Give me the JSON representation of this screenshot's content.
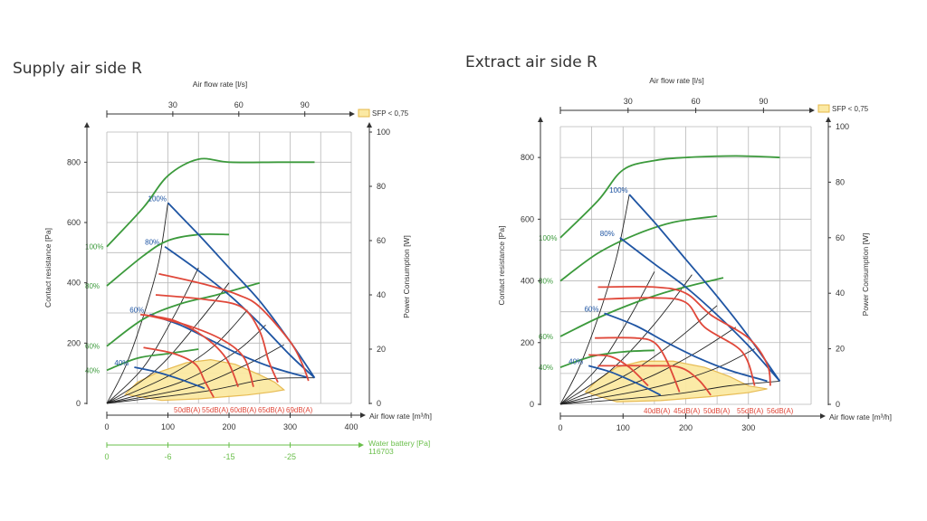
{
  "colors": {
    "grid": "#b8b8b8",
    "axis": "#333333",
    "fan": "#1f55a3",
    "power": "#3c9a3c",
    "noise": "#e0483a",
    "water": "#6abf4b",
    "sfp_fill": "#fbe9a3",
    "sfp_stroke": "#e6b84a",
    "system": "#222222"
  },
  "chart_data": [
    {
      "type": "line",
      "title": "Supply air side R",
      "xlabel": "Air flow rate [m³/h]",
      "ylabel": "Contact resistance [Pa]",
      "y2label": "Power Consumption [W]",
      "top_axis_label": "Air flow rate [l/s]",
      "xlim": [
        0,
        400
      ],
      "ylim": [
        0,
        900
      ],
      "y2lim": [
        0,
        100
      ],
      "x_ticks": [
        "0",
        "100",
        "200",
        "300",
        "400"
      ],
      "y_ticks": [
        "0",
        "200",
        "400",
        "600",
        "800"
      ],
      "y2_ticks": [
        "0",
        "20",
        "40",
        "60",
        "80",
        "100"
      ],
      "top_ticks": [
        "30",
        "60",
        "90"
      ],
      "sfp_label": "SFP < 0,75",
      "water": {
        "label": "Water battery [Pa]",
        "code": "116703",
        "ticks": [
          "0",
          "-6",
          "-15",
          "-25"
        ]
      },
      "fan_curves": [
        {
          "label": "100%",
          "points": [
            [
              100,
              665
            ],
            [
              150,
              560
            ],
            [
              200,
              450
            ],
            [
              250,
              340
            ],
            [
              300,
              205
            ],
            [
              340,
              85
            ]
          ]
        },
        {
          "label": "80%",
          "points": [
            [
              95,
              520
            ],
            [
              150,
              440
            ],
            [
              200,
              360
            ],
            [
              250,
              265
            ],
            [
              300,
              160
            ],
            [
              340,
              85
            ]
          ]
        },
        {
          "label": "60%",
          "points": [
            [
              70,
              295
            ],
            [
              120,
              260
            ],
            [
              170,
              210
            ],
            [
              220,
              160
            ],
            [
              270,
              120
            ],
            [
              330,
              85
            ]
          ]
        },
        {
          "label": "40%",
          "points": [
            [
              45,
              120
            ],
            [
              80,
              105
            ],
            [
              120,
              80
            ],
            [
              160,
              50
            ]
          ]
        }
      ],
      "power_curves": [
        {
          "label": "100%",
          "points": [
            [
              0,
              520
            ],
            [
              60,
              650
            ],
            [
              100,
              755
            ],
            [
              150,
              810
            ],
            [
              200,
              800
            ],
            [
              280,
              800
            ],
            [
              340,
              800
            ]
          ]
        },
        {
          "label": "80%",
          "points": [
            [
              0,
              390
            ],
            [
              60,
              490
            ],
            [
              100,
              540
            ],
            [
              150,
              560
            ],
            [
              200,
              560
            ]
          ]
        },
        {
          "label": "60%",
          "points": [
            [
              0,
              190
            ],
            [
              60,
              280
            ],
            [
              120,
              330
            ],
            [
              180,
              360
            ],
            [
              250,
              400
            ]
          ]
        },
        {
          "label": "40%",
          "points": [
            [
              0,
              110
            ],
            [
              50,
              150
            ],
            [
              100,
              165
            ],
            [
              150,
              180
            ]
          ]
        }
      ],
      "noise_curves": [
        {
          "label": "50dB(A)",
          "points": [
            [
              60,
              185
            ],
            [
              110,
              165
            ],
            [
              145,
              130
            ],
            [
              160,
              75
            ],
            [
              175,
              20
            ]
          ]
        },
        {
          "label": "55dB(A)",
          "points": [
            [
              55,
              295
            ],
            [
              110,
              275
            ],
            [
              160,
              220
            ],
            [
              195,
              150
            ],
            [
              215,
              55
            ]
          ]
        },
        {
          "label": "60dB(A)",
          "points": [
            [
              60,
              295
            ],
            [
              130,
              260
            ],
            [
              190,
              210
            ],
            [
              225,
              150
            ],
            [
              240,
              55
            ]
          ]
        },
        {
          "label": "65dB(A)",
          "points": [
            [
              80,
              360
            ],
            [
              160,
              345
            ],
            [
              220,
              320
            ],
            [
              250,
              240
            ],
            [
              265,
              140
            ],
            [
              280,
              70
            ]
          ]
        },
        {
          "label": "69dB(A)",
          "points": [
            [
              85,
              430
            ],
            [
              160,
              395
            ],
            [
              215,
              360
            ],
            [
              250,
              320
            ],
            [
              300,
              205
            ],
            [
              320,
              130
            ],
            [
              330,
              75
            ]
          ]
        }
      ],
      "system_curves": [
        [
          [
            0,
            0
          ],
          [
            30,
            120
          ],
          [
            60,
            290
          ],
          [
            85,
            470
          ],
          [
            100,
            665
          ]
        ],
        [
          [
            0,
            0
          ],
          [
            60,
            120
          ],
          [
            110,
            290
          ],
          [
            150,
            450
          ]
        ],
        [
          [
            0,
            0
          ],
          [
            80,
            110
          ],
          [
            150,
            270
          ],
          [
            200,
            400
          ]
        ],
        [
          [
            0,
            0
          ],
          [
            100,
            90
          ],
          [
            175,
            190
          ],
          [
            230,
            310
          ]
        ],
        [
          [
            0,
            0
          ],
          [
            120,
            70
          ],
          [
            210,
            170
          ],
          [
            260,
            260
          ]
        ],
        [
          [
            0,
            0
          ],
          [
            140,
            55
          ],
          [
            230,
            130
          ],
          [
            290,
            195
          ]
        ],
        [
          [
            0,
            0
          ],
          [
            160,
            40
          ],
          [
            260,
            80
          ],
          [
            340,
            85
          ]
        ]
      ],
      "sfp_area": [
        [
          30,
          30
        ],
        [
          50,
          70
        ],
        [
          80,
          100
        ],
        [
          130,
          135
        ],
        [
          170,
          145
        ],
        [
          210,
          130
        ],
        [
          250,
          95
        ],
        [
          275,
          70
        ],
        [
          290,
          45
        ],
        [
          270,
          38
        ],
        [
          230,
          28
        ],
        [
          150,
          15
        ],
        [
          90,
          10
        ]
      ]
    },
    {
      "type": "line",
      "title": "Extract air side R",
      "xlabel": "Air flow rate [m³/h]",
      "ylabel": "Contact resistance [Pa]",
      "y2label": "Power Consumption [W]",
      "top_axis_label": "Air flow rate [l/s]",
      "xlim": [
        0,
        400
      ],
      "ylim": [
        0,
        900
      ],
      "y2lim": [
        0,
        100
      ],
      "x_ticks": [
        "0",
        "100",
        "200",
        "300"
      ],
      "y_ticks": [
        "0",
        "200",
        "400",
        "600",
        "800"
      ],
      "y2_ticks": [
        "0",
        "20",
        "40",
        "60",
        "80",
        "100"
      ],
      "top_ticks": [
        "30",
        "60",
        "90"
      ],
      "sfp_label": "SFP < 0,75",
      "fan_curves": [
        {
          "label": "100%",
          "points": [
            [
              110,
              680
            ],
            [
              150,
              590
            ],
            [
              200,
              470
            ],
            [
              250,
              350
            ],
            [
              300,
              220
            ],
            [
              350,
              75
            ]
          ]
        },
        {
          "label": "80%",
          "points": [
            [
              95,
              540
            ],
            [
              150,
              455
            ],
            [
              200,
              380
            ],
            [
              250,
              290
            ],
            [
              300,
              190
            ],
            [
              350,
              75
            ]
          ]
        },
        {
          "label": "60%",
          "points": [
            [
              70,
              295
            ],
            [
              120,
              255
            ],
            [
              170,
              200
            ],
            [
              220,
              150
            ],
            [
              270,
              110
            ],
            [
              330,
              75
            ]
          ]
        },
        {
          "label": "40%",
          "points": [
            [
              45,
              125
            ],
            [
              80,
              105
            ],
            [
              120,
              70
            ],
            [
              160,
              30
            ]
          ]
        }
      ],
      "power_curves": [
        {
          "label": "100%",
          "points": [
            [
              0,
              540
            ],
            [
              60,
              660
            ],
            [
              100,
              760
            ],
            [
              150,
              790
            ],
            [
              200,
              800
            ],
            [
              280,
              805
            ],
            [
              350,
              800
            ]
          ]
        },
        {
          "label": "80%",
          "points": [
            [
              0,
              400
            ],
            [
              60,
              490
            ],
            [
              120,
              550
            ],
            [
              180,
              590
            ],
            [
              250,
              610
            ]
          ]
        },
        {
          "label": "60%",
          "points": [
            [
              0,
              220
            ],
            [
              60,
              280
            ],
            [
              120,
              330
            ],
            [
              180,
              370
            ],
            [
              260,
              410
            ]
          ]
        },
        {
          "label": "40%",
          "points": [
            [
              0,
              120
            ],
            [
              50,
              155
            ],
            [
              100,
              170
            ],
            [
              150,
              175
            ]
          ]
        }
      ],
      "noise_curves": [
        {
          "label": "40dB(A)",
          "points": [
            [
              45,
              160
            ],
            [
              80,
              155
            ],
            [
              110,
              120
            ],
            [
              140,
              60
            ]
          ]
        },
        {
          "label": "45dB(A)",
          "points": [
            [
              55,
              215
            ],
            [
              120,
              215
            ],
            [
              150,
              200
            ],
            [
              170,
              140
            ],
            [
              190,
              40
            ]
          ]
        },
        {
          "label": "50dB(A)",
          "points": [
            [
              60,
              125
            ],
            [
              140,
              125
            ],
            [
              190,
              120
            ],
            [
              220,
              80
            ],
            [
              240,
              30
            ]
          ]
        },
        {
          "label": "55dB(A)",
          "points": [
            [
              60,
              340
            ],
            [
              150,
              345
            ],
            [
              200,
              330
            ],
            [
              230,
              250
            ],
            [
              290,
              170
            ],
            [
              310,
              60
            ]
          ]
        },
        {
          "label": "56dB(A)",
          "points": [
            [
              60,
              380
            ],
            [
              150,
              380
            ],
            [
              200,
              360
            ],
            [
              240,
              290
            ],
            [
              300,
              215
            ],
            [
              330,
              130
            ],
            [
              335,
              60
            ]
          ]
        }
      ],
      "system_curves": [
        [
          [
            0,
            0
          ],
          [
            30,
            120
          ],
          [
            60,
            280
          ],
          [
            90,
            480
          ],
          [
            110,
            680
          ]
        ],
        [
          [
            0,
            0
          ],
          [
            60,
            120
          ],
          [
            110,
            280
          ],
          [
            150,
            430
          ]
        ],
        [
          [
            0,
            0
          ],
          [
            80,
            110
          ],
          [
            150,
            260
          ],
          [
            210,
            420
          ]
        ],
        [
          [
            0,
            0
          ],
          [
            100,
            90
          ],
          [
            180,
            200
          ],
          [
            250,
            320
          ]
        ],
        [
          [
            0,
            0
          ],
          [
            120,
            70
          ],
          [
            210,
            160
          ],
          [
            280,
            250
          ]
        ],
        [
          [
            0,
            0
          ],
          [
            140,
            50
          ],
          [
            240,
            110
          ],
          [
            310,
            180
          ]
        ],
        [
          [
            0,
            0
          ],
          [
            170,
            30
          ],
          [
            270,
            60
          ],
          [
            350,
            75
          ]
        ]
      ],
      "sfp_area": [
        [
          40,
          40
        ],
        [
          60,
          80
        ],
        [
          90,
          120
        ],
        [
          130,
          140
        ],
        [
          180,
          140
        ],
        [
          230,
          120
        ],
        [
          270,
          90
        ],
        [
          300,
          60
        ],
        [
          330,
          50
        ],
        [
          300,
          38
        ],
        [
          240,
          25
        ],
        [
          160,
          12
        ],
        [
          90,
          8
        ]
      ]
    }
  ]
}
